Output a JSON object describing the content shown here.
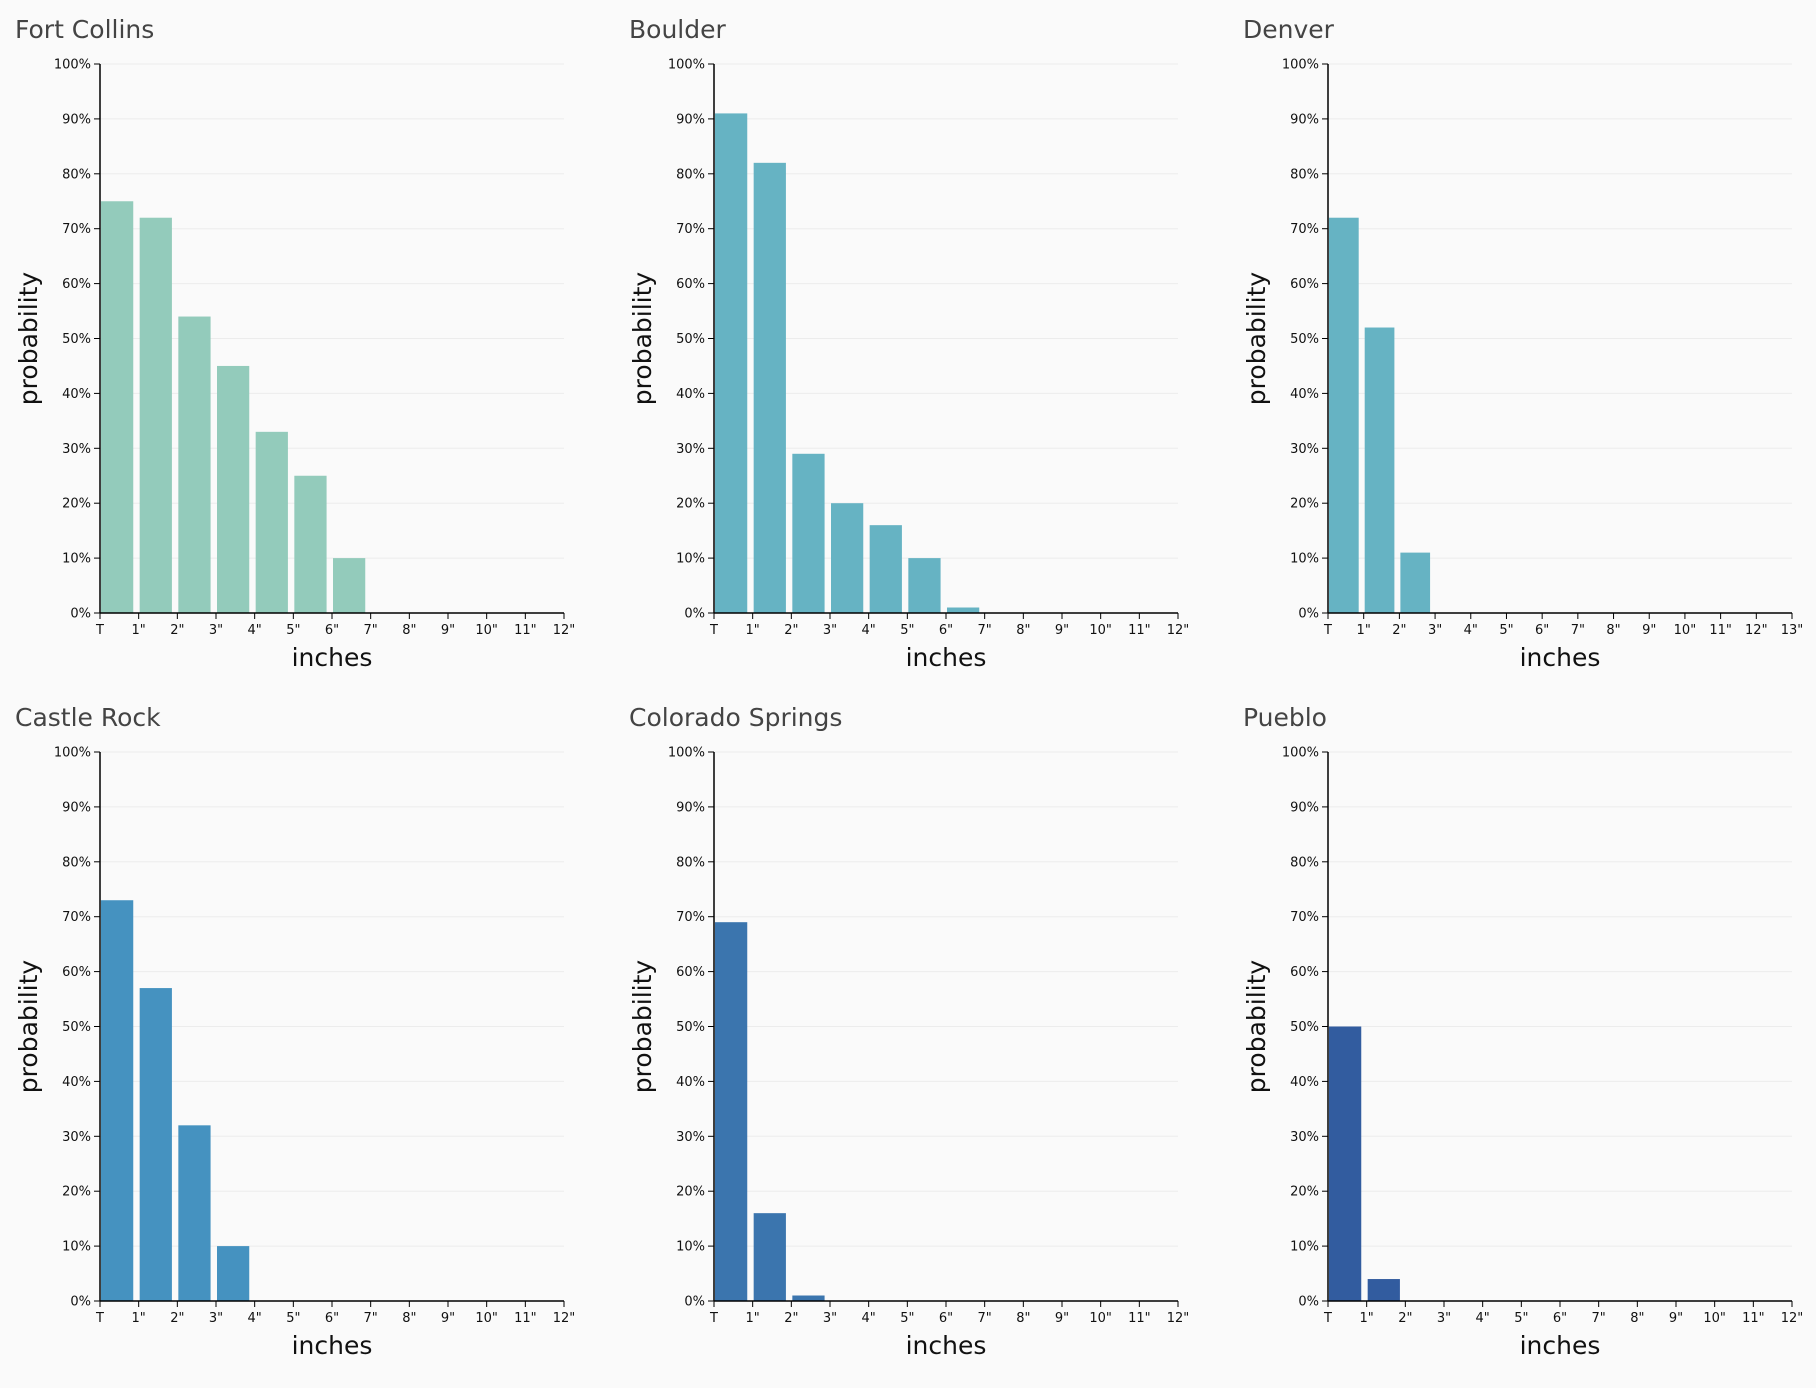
{
  "chart_data": [
    {
      "type": "histogram",
      "title": "Fort Collins",
      "xlabel": "inches",
      "ylabel": "probability",
      "color": "#93cbbb",
      "bins": [
        0,
        1,
        2,
        3,
        4,
        5,
        6,
        7,
        8,
        9,
        10,
        11,
        12
      ],
      "values": [
        75,
        72,
        54,
        45,
        33,
        25,
        10,
        0,
        0,
        0,
        0,
        0
      ],
      "xlim": [
        0,
        12
      ],
      "xticks": [
        {
          "value": 0,
          "label": "T"
        },
        {
          "value": 1,
          "label": "1\""
        },
        {
          "value": 2,
          "label": "2\""
        },
        {
          "value": 3,
          "label": "3\""
        },
        {
          "value": 4,
          "label": "4\""
        },
        {
          "value": 5,
          "label": "5\""
        },
        {
          "value": 6,
          "label": "6\""
        },
        {
          "value": 7,
          "label": "7\""
        },
        {
          "value": 8,
          "label": "8\""
        },
        {
          "value": 9,
          "label": "9\""
        },
        {
          "value": 10,
          "label": "10\""
        },
        {
          "value": 11,
          "label": "11\""
        },
        {
          "value": 12,
          "label": "12\""
        }
      ],
      "ylim": [
        0,
        100
      ],
      "yticks": [
        {
          "value": 0,
          "label": "0%"
        },
        {
          "value": 10,
          "label": "10%"
        },
        {
          "value": 20,
          "label": "20%"
        },
        {
          "value": 30,
          "label": "30%"
        },
        {
          "value": 40,
          "label": "40%"
        },
        {
          "value": 50,
          "label": "50%"
        },
        {
          "value": 60,
          "label": "60%"
        },
        {
          "value": 70,
          "label": "70%"
        },
        {
          "value": 80,
          "label": "80%"
        },
        {
          "value": 90,
          "label": "90%"
        },
        {
          "value": 100,
          "label": "100%"
        }
      ],
      "grid": true
    },
    {
      "type": "histogram",
      "title": "Boulder",
      "xlabel": "inches",
      "ylabel": "probability",
      "color": "#66b3c3",
      "bins": [
        0,
        1,
        2,
        3,
        4,
        5,
        6,
        7,
        8,
        9,
        10,
        11,
        12
      ],
      "values": [
        91,
        82,
        29,
        20,
        16,
        10,
        1,
        0,
        0,
        0,
        0,
        0
      ],
      "xlim": [
        0,
        12
      ],
      "xticks": [
        {
          "value": 0,
          "label": "T"
        },
        {
          "value": 1,
          "label": "1\""
        },
        {
          "value": 2,
          "label": "2\""
        },
        {
          "value": 3,
          "label": "3\""
        },
        {
          "value": 4,
          "label": "4\""
        },
        {
          "value": 5,
          "label": "5\""
        },
        {
          "value": 6,
          "label": "6\""
        },
        {
          "value": 7,
          "label": "7\""
        },
        {
          "value": 8,
          "label": "8\""
        },
        {
          "value": 9,
          "label": "9\""
        },
        {
          "value": 10,
          "label": "10\""
        },
        {
          "value": 11,
          "label": "11\""
        },
        {
          "value": 12,
          "label": "12\""
        }
      ],
      "ylim": [
        0,
        100
      ],
      "yticks": [
        {
          "value": 0,
          "label": "0%"
        },
        {
          "value": 10,
          "label": "10%"
        },
        {
          "value": 20,
          "label": "20%"
        },
        {
          "value": 30,
          "label": "30%"
        },
        {
          "value": 40,
          "label": "40%"
        },
        {
          "value": 50,
          "label": "50%"
        },
        {
          "value": 60,
          "label": "60%"
        },
        {
          "value": 70,
          "label": "70%"
        },
        {
          "value": 80,
          "label": "80%"
        },
        {
          "value": 90,
          "label": "90%"
        },
        {
          "value": 100,
          "label": "100%"
        }
      ],
      "grid": true
    },
    {
      "type": "histogram",
      "title": "Denver",
      "xlabel": "inches",
      "ylabel": "probability",
      "color": "#66b3c3",
      "bins": [
        0,
        1,
        2,
        3,
        4,
        5,
        6,
        7,
        8,
        9,
        10,
        11,
        12,
        13
      ],
      "values": [
        72,
        52,
        11,
        0,
        0,
        0,
        0,
        0,
        0,
        0,
        0,
        0,
        0
      ],
      "xlim": [
        0,
        13
      ],
      "xticks": [
        {
          "value": 0,
          "label": "T"
        },
        {
          "value": 1,
          "label": "1\""
        },
        {
          "value": 2,
          "label": "2\""
        },
        {
          "value": 3,
          "label": "3\""
        },
        {
          "value": 4,
          "label": "4\""
        },
        {
          "value": 5,
          "label": "5\""
        },
        {
          "value": 6,
          "label": "6\""
        },
        {
          "value": 7,
          "label": "7\""
        },
        {
          "value": 8,
          "label": "8\""
        },
        {
          "value": 9,
          "label": "9\""
        },
        {
          "value": 10,
          "label": "10\""
        },
        {
          "value": 11,
          "label": "11\""
        },
        {
          "value": 12,
          "label": "12\""
        },
        {
          "value": 13,
          "label": "13\""
        }
      ],
      "ylim": [
        0,
        100
      ],
      "yticks": [
        {
          "value": 0,
          "label": "0%"
        },
        {
          "value": 10,
          "label": "10%"
        },
        {
          "value": 20,
          "label": "20%"
        },
        {
          "value": 30,
          "label": "30%"
        },
        {
          "value": 40,
          "label": "40%"
        },
        {
          "value": 50,
          "label": "50%"
        },
        {
          "value": 60,
          "label": "60%"
        },
        {
          "value": 70,
          "label": "70%"
        },
        {
          "value": 80,
          "label": "80%"
        },
        {
          "value": 90,
          "label": "90%"
        },
        {
          "value": 100,
          "label": "100%"
        }
      ],
      "grid": true
    },
    {
      "type": "histogram",
      "title": "Castle Rock",
      "xlabel": "inches",
      "ylabel": "probability",
      "color": "#4592c0",
      "bins": [
        0,
        1,
        2,
        3,
        4,
        5,
        6,
        7,
        8,
        9,
        10,
        11,
        12
      ],
      "values": [
        73,
        57,
        32,
        10,
        0,
        0,
        0,
        0,
        0,
        0,
        0,
        0
      ],
      "xlim": [
        0,
        12
      ],
      "xticks": [
        {
          "value": 0,
          "label": "T"
        },
        {
          "value": 1,
          "label": "1\""
        },
        {
          "value": 2,
          "label": "2\""
        },
        {
          "value": 3,
          "label": "3\""
        },
        {
          "value": 4,
          "label": "4\""
        },
        {
          "value": 5,
          "label": "5\""
        },
        {
          "value": 6,
          "label": "6\""
        },
        {
          "value": 7,
          "label": "7\""
        },
        {
          "value": 8,
          "label": "8\""
        },
        {
          "value": 9,
          "label": "9\""
        },
        {
          "value": 10,
          "label": "10\""
        },
        {
          "value": 11,
          "label": "11\""
        },
        {
          "value": 12,
          "label": "12\""
        }
      ],
      "ylim": [
        0,
        100
      ],
      "yticks": [
        {
          "value": 0,
          "label": "0%"
        },
        {
          "value": 10,
          "label": "10%"
        },
        {
          "value": 20,
          "label": "20%"
        },
        {
          "value": 30,
          "label": "30%"
        },
        {
          "value": 40,
          "label": "40%"
        },
        {
          "value": 50,
          "label": "50%"
        },
        {
          "value": 60,
          "label": "60%"
        },
        {
          "value": 70,
          "label": "70%"
        },
        {
          "value": 80,
          "label": "80%"
        },
        {
          "value": 90,
          "label": "90%"
        },
        {
          "value": 100,
          "label": "100%"
        }
      ],
      "grid": true
    },
    {
      "type": "histogram",
      "title": "Colorado Springs",
      "xlabel": "inches",
      "ylabel": "probability",
      "color": "#3b75ae",
      "bins": [
        0,
        1,
        2,
        3,
        4,
        5,
        6,
        7,
        8,
        9,
        10,
        11,
        12
      ],
      "values": [
        69,
        16,
        1,
        0,
        0,
        0,
        0,
        0,
        0,
        0,
        0,
        0
      ],
      "xlim": [
        0,
        12
      ],
      "xticks": [
        {
          "value": 0,
          "label": "T"
        },
        {
          "value": 1,
          "label": "1\""
        },
        {
          "value": 2,
          "label": "2\""
        },
        {
          "value": 3,
          "label": "3\""
        },
        {
          "value": 4,
          "label": "4\""
        },
        {
          "value": 5,
          "label": "5\""
        },
        {
          "value": 6,
          "label": "6\""
        },
        {
          "value": 7,
          "label": "7\""
        },
        {
          "value": 8,
          "label": "8\""
        },
        {
          "value": 9,
          "label": "9\""
        },
        {
          "value": 10,
          "label": "10\""
        },
        {
          "value": 11,
          "label": "11\""
        },
        {
          "value": 12,
          "label": "12\""
        }
      ],
      "ylim": [
        0,
        100
      ],
      "yticks": [
        {
          "value": 0,
          "label": "0%"
        },
        {
          "value": 10,
          "label": "10%"
        },
        {
          "value": 20,
          "label": "20%"
        },
        {
          "value": 30,
          "label": "30%"
        },
        {
          "value": 40,
          "label": "40%"
        },
        {
          "value": 50,
          "label": "50%"
        },
        {
          "value": 60,
          "label": "60%"
        },
        {
          "value": 70,
          "label": "70%"
        },
        {
          "value": 80,
          "label": "80%"
        },
        {
          "value": 90,
          "label": "90%"
        },
        {
          "value": 100,
          "label": "100%"
        }
      ],
      "grid": true
    },
    {
      "type": "histogram",
      "title": "Pueblo",
      "xlabel": "inches",
      "ylabel": "probability",
      "color": "#325c9f",
      "bins": [
        0,
        1,
        2,
        3,
        4,
        5,
        6,
        7,
        8,
        9,
        10,
        11,
        12
      ],
      "values": [
        50,
        4,
        0,
        0,
        0,
        0,
        0,
        0,
        0,
        0,
        0,
        0
      ],
      "xlim": [
        0,
        12
      ],
      "xticks": [
        {
          "value": 0,
          "label": "T"
        },
        {
          "value": 1,
          "label": "1\""
        },
        {
          "value": 2,
          "label": "2\""
        },
        {
          "value": 3,
          "label": "3\""
        },
        {
          "value": 4,
          "label": "4\""
        },
        {
          "value": 5,
          "label": "5\""
        },
        {
          "value": 6,
          "label": "6\""
        },
        {
          "value": 7,
          "label": "7\""
        },
        {
          "value": 8,
          "label": "8\""
        },
        {
          "value": 9,
          "label": "9\""
        },
        {
          "value": 10,
          "label": "10\""
        },
        {
          "value": 11,
          "label": "11\""
        },
        {
          "value": 12,
          "label": "12\""
        }
      ],
      "ylim": [
        0,
        100
      ],
      "yticks": [
        {
          "value": 0,
          "label": "0%"
        },
        {
          "value": 10,
          "label": "10%"
        },
        {
          "value": 20,
          "label": "20%"
        },
        {
          "value": 30,
          "label": "30%"
        },
        {
          "value": 40,
          "label": "40%"
        },
        {
          "value": 50,
          "label": "50%"
        },
        {
          "value": 60,
          "label": "60%"
        },
        {
          "value": 70,
          "label": "70%"
        },
        {
          "value": 80,
          "label": "80%"
        },
        {
          "value": 90,
          "label": "90%"
        },
        {
          "value": 100,
          "label": "100%"
        }
      ],
      "grid": true
    }
  ]
}
